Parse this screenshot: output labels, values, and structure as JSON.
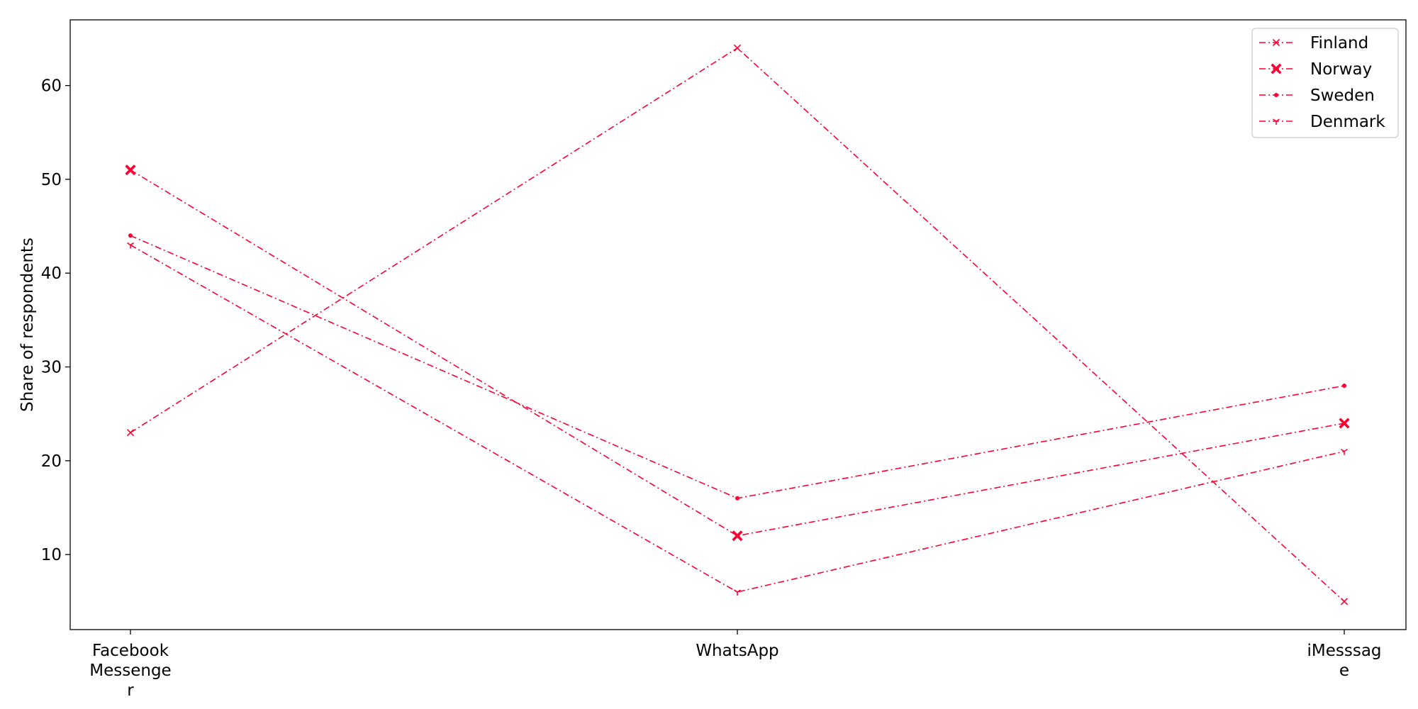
{
  "chart_data": {
    "type": "line",
    "title": "",
    "xlabel": "",
    "ylabel": "Share of respondents",
    "categories": [
      "Facebook Messenger",
      "WhatsApp",
      "iMesssage"
    ],
    "category_label_lines": [
      [
        "Facebook",
        "Messenge",
        "r"
      ],
      [
        "WhatsApp"
      ],
      [
        "iMesssag",
        "e"
      ]
    ],
    "ylim": [
      2,
      67
    ],
    "yticks": [
      10,
      20,
      30,
      40,
      50,
      60
    ],
    "grid": false,
    "legend_position": "top-right",
    "line_color": "#ff0033",
    "line_style": "dash-dot",
    "series": [
      {
        "name": "Finland",
        "values": [
          23,
          64,
          5
        ],
        "marker": "x"
      },
      {
        "name": "Norway",
        "values": [
          51,
          12,
          24
        ],
        "marker": "filled-x"
      },
      {
        "name": "Sweden",
        "values": [
          44,
          16,
          28
        ],
        "marker": "dot"
      },
      {
        "name": "Denmark",
        "values": [
          43,
          6,
          21
        ],
        "marker": "tri-down"
      }
    ]
  }
}
